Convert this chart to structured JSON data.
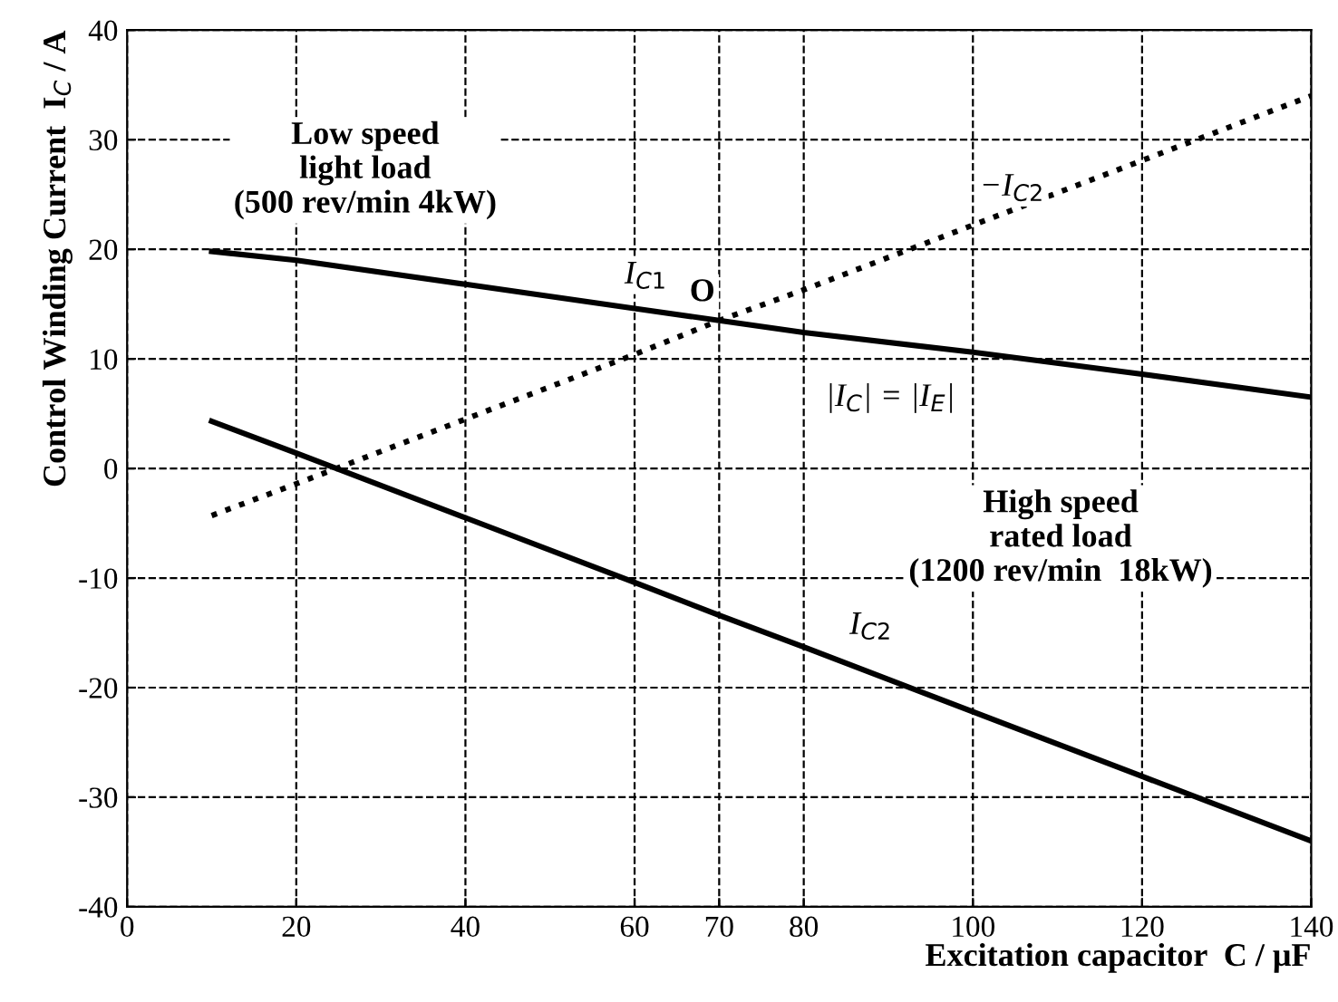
{
  "chart_data": {
    "type": "line",
    "xlabel": "Excitation capacitor  C / μF",
    "ylabel": "Control Winding Current  I$_{C}$ / A",
    "x": [
      10,
      20,
      40,
      60,
      70,
      80,
      100,
      120,
      140
    ],
    "series": [
      {
        "color": "#000000",
        "line_style": "solid",
        "values": [
          19.8,
          19.0,
          16.8,
          14.6,
          13.5,
          12.4,
          10.6,
          8.6,
          6.5
        ]
      },
      {
        "color": "#000000",
        "line_style": "dotted",
        "values": [
          -4.3,
          -1.4,
          4.5,
          10.4,
          13.5,
          16.3,
          22.2,
          28.1,
          34.0
        ]
      },
      {
        "color": "#000000",
        "line_style": "solid",
        "values": [
          4.3,
          1.4,
          -4.5,
          -10.4,
          -13.4,
          -16.3,
          -22.2,
          -28.1,
          -34.0
        ]
      }
    ],
    "xlim": [
      0,
      140
    ],
    "xticks": [
      0,
      20,
      40,
      60,
      70,
      80,
      100,
      120,
      140
    ],
    "ylim": [
      -40,
      40
    ],
    "yticks": [
      -40,
      -30,
      -20,
      -10,
      0,
      10,
      20,
      30,
      40
    ],
    "grid": true,
    "marker": "none",
    "annotations": [
      "Low speed\nlight load\n(500 rev/min 4kW)",
      "I$_{C1}$",
      "O",
      "|I$_{C}$| = |I$_{E}$|",
      "−I$_{C2}$",
      "High speed\nrated load\n(1200 rev/min  18kW)",
      "I$_{C2}$"
    ]
  }
}
